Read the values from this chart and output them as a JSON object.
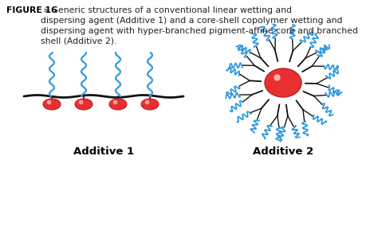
{
  "background_color": "#ffffff",
  "fig_width": 4.74,
  "fig_height": 2.89,
  "dpi": 100,
  "caption_bold": "FIGURE 16",
  "caption_arrow": " » ",
  "caption_text": "Generic structures of a conventional linear wetting and\ndispersing agent (Additive 1) and a core-shell copolymer wetting and\ndispersing agent with hyper-branched pigment-affine core and branched\nshell (Additive 2).",
  "label1": "Additive 1",
  "label2": "Additive 2",
  "blue_chain_color": "#3399dd",
  "black_line_color": "#111111",
  "pigment_color_center": "#e83030",
  "pigment_color_edge": "#f07070",
  "surface_line_color": "#111111",
  "label_fontsize": 9.5,
  "caption_fontsize": 7.8
}
